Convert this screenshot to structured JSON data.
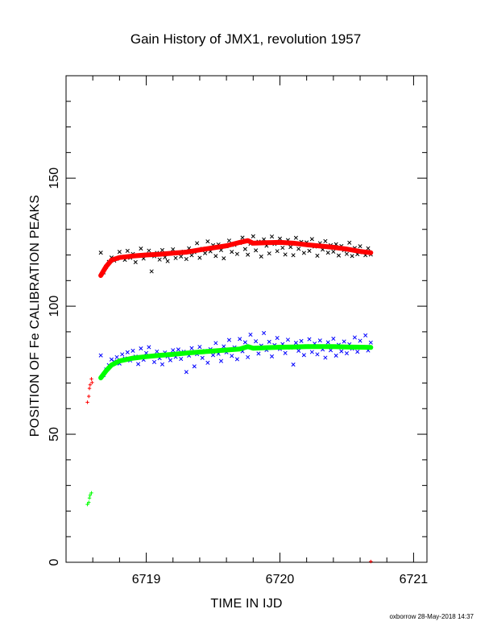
{
  "chart_data": {
    "type": "scatter",
    "title": "Gain History of JMX1, revolution 1957",
    "xlabel": "TIME IN IJD",
    "ylabel": "POSITION OF Fe CALIBRATION PEAKS",
    "xlim": [
      6718.4,
      6721.1
    ],
    "ylim": [
      0,
      190
    ],
    "x_ticks": [
      "6719",
      "6720",
      "6721"
    ],
    "y_ticks": [
      "0",
      "50",
      "100",
      "150"
    ],
    "grid": false,
    "credit": "oxborrow 28-May-2018 14:37",
    "series": [
      {
        "marker": "x",
        "color": "#000000",
        "points": [
          [
            6718.66,
            120.9
          ],
          [
            6718.68,
            113.2
          ],
          [
            6718.7,
            115.4
          ],
          [
            6718.72,
            117.3
          ],
          [
            6718.74,
            119.0
          ],
          [
            6718.76,
            117.8
          ],
          [
            6718.78,
            118.5
          ],
          [
            6718.8,
            121.2
          ],
          [
            6718.82,
            119.3
          ],
          [
            6718.84,
            118.1
          ],
          [
            6718.86,
            121.6
          ],
          [
            6718.88,
            118.9
          ],
          [
            6718.9,
            120.4
          ],
          [
            6718.92,
            117.2
          ],
          [
            6718.94,
            119.8
          ],
          [
            6718.96,
            122.5
          ],
          [
            6718.98,
            118.6
          ],
          [
            6719.0,
            120.1
          ],
          [
            6719.02,
            121.7
          ],
          [
            6719.04,
            113.6
          ],
          [
            6719.06,
            119.5
          ],
          [
            6719.08,
            120.8
          ],
          [
            6719.1,
            118.2
          ],
          [
            6719.12,
            121.9
          ],
          [
            6719.14,
            119.1
          ],
          [
            6719.16,
            117.6
          ],
          [
            6719.18,
            120.6
          ],
          [
            6719.2,
            122.2
          ],
          [
            6719.22,
            118.8
          ],
          [
            6719.24,
            120.9
          ],
          [
            6719.26,
            119.4
          ],
          [
            6719.28,
            121.3
          ],
          [
            6719.3,
            118.4
          ],
          [
            6719.32,
            122.6
          ],
          [
            6719.34,
            119.9
          ],
          [
            6719.36,
            121.1
          ],
          [
            6719.38,
            124.6
          ],
          [
            6719.4,
            118.9
          ],
          [
            6719.42,
            122.4
          ],
          [
            6719.44,
            120.7
          ],
          [
            6719.46,
            125.3
          ],
          [
            6719.48,
            121.4
          ],
          [
            6719.5,
            123.8
          ],
          [
            6719.52,
            119.6
          ],
          [
            6719.54,
            124.1
          ],
          [
            6719.56,
            121.9
          ],
          [
            6719.58,
            118.7
          ],
          [
            6719.6,
            123.4
          ],
          [
            6719.62,
            125.6
          ],
          [
            6719.64,
            121.2
          ],
          [
            6719.66,
            123.9
          ],
          [
            6719.68,
            120.4
          ],
          [
            6719.7,
            124.7
          ],
          [
            6719.72,
            126.8
          ],
          [
            6719.74,
            122.3
          ],
          [
            6719.76,
            120.1
          ],
          [
            6719.78,
            124.4
          ],
          [
            6719.8,
            127.3
          ],
          [
            6719.82,
            121.8
          ],
          [
            6719.84,
            125.2
          ],
          [
            6719.86,
            119.4
          ],
          [
            6719.88,
            126.1
          ],
          [
            6719.9,
            123.6
          ],
          [
            6719.92,
            120.6
          ],
          [
            6719.94,
            127.2
          ],
          [
            6719.96,
            124.3
          ],
          [
            6719.98,
            121.5
          ],
          [
            6720.0,
            126.4
          ],
          [
            6720.02,
            122.8
          ],
          [
            6720.04,
            120.2
          ],
          [
            6720.06,
            125.8
          ],
          [
            6720.08,
            123.1
          ],
          [
            6720.1,
            119.9
          ],
          [
            6720.12,
            126.7
          ],
          [
            6720.14,
            122.4
          ],
          [
            6720.16,
            125.1
          ],
          [
            6720.18,
            120.8
          ],
          [
            6720.2,
            124.9
          ],
          [
            6720.22,
            121.6
          ],
          [
            6720.24,
            126.2
          ],
          [
            6720.26,
            123.3
          ],
          [
            6720.28,
            119.7
          ],
          [
            6720.3,
            124.6
          ],
          [
            6720.32,
            122.1
          ],
          [
            6720.34,
            125.4
          ],
          [
            6720.36,
            120.9
          ],
          [
            6720.38,
            123.8
          ],
          [
            6720.4,
            121.3
          ],
          [
            6720.42,
            124.2
          ],
          [
            6720.44,
            119.8
          ],
          [
            6720.46,
            123.5
          ],
          [
            6720.48,
            121.9
          ],
          [
            6720.5,
            120.4
          ],
          [
            6720.52,
            124.8
          ],
          [
            6720.54,
            119.6
          ],
          [
            6720.56,
            122.7
          ],
          [
            6720.58,
            120.3
          ],
          [
            6720.6,
            123.4
          ],
          [
            6720.62,
            121.1
          ],
          [
            6720.64,
            119.9
          ],
          [
            6720.66,
            122.6
          ],
          [
            6720.68,
            120.2
          ]
        ]
      },
      {
        "marker": "x",
        "color": "#0000ff",
        "points": [
          [
            6718.66,
            80.8
          ],
          [
            6718.68,
            73.1
          ],
          [
            6718.7,
            75.3
          ],
          [
            6718.72,
            77.0
          ],
          [
            6718.74,
            79.2
          ],
          [
            6718.76,
            78.4
          ],
          [
            6718.78,
            80.1
          ],
          [
            6718.8,
            77.6
          ],
          [
            6718.82,
            81.2
          ],
          [
            6718.84,
            79.6
          ],
          [
            6718.86,
            82.0
          ],
          [
            6718.88,
            78.8
          ],
          [
            6718.9,
            82.6
          ],
          [
            6718.92,
            80.3
          ],
          [
            6718.94,
            77.4
          ],
          [
            6718.96,
            83.5
          ],
          [
            6718.98,
            79.1
          ],
          [
            6719.0,
            81.7
          ],
          [
            6719.02,
            84.0
          ],
          [
            6719.04,
            80.5
          ],
          [
            6719.06,
            78.2
          ],
          [
            6719.08,
            82.3
          ],
          [
            6719.1,
            79.7
          ],
          [
            6719.12,
            77.3
          ],
          [
            6719.14,
            81.9
          ],
          [
            6719.16,
            80.4
          ],
          [
            6719.18,
            78.9
          ],
          [
            6719.2,
            82.8
          ],
          [
            6719.22,
            80.2
          ],
          [
            6719.24,
            83.1
          ],
          [
            6719.26,
            79.4
          ],
          [
            6719.28,
            82.2
          ],
          [
            6719.3,
            74.3
          ],
          [
            6719.32,
            80.7
          ],
          [
            6719.34,
            83.6
          ],
          [
            6719.36,
            76.5
          ],
          [
            6719.38,
            81.3
          ],
          [
            6719.4,
            84.1
          ],
          [
            6719.42,
            79.8
          ],
          [
            6719.44,
            82.5
          ],
          [
            6719.46,
            77.9
          ],
          [
            6719.48,
            83.2
          ],
          [
            6719.5,
            80.9
          ],
          [
            6719.52,
            85.6
          ],
          [
            6719.54,
            81.4
          ],
          [
            6719.56,
            78.6
          ],
          [
            6719.58,
            84.3
          ],
          [
            6719.6,
            82.0
          ],
          [
            6719.62,
            86.8
          ],
          [
            6719.64,
            80.6
          ],
          [
            6719.66,
            83.9
          ],
          [
            6719.68,
            79.3
          ],
          [
            6719.7,
            87.2
          ],
          [
            6719.72,
            82.4
          ],
          [
            6719.74,
            85.9
          ],
          [
            6719.76,
            80.1
          ],
          [
            6719.78,
            88.9
          ],
          [
            6719.8,
            83.7
          ],
          [
            6719.82,
            86.3
          ],
          [
            6719.84,
            81.5
          ],
          [
            6719.86,
            84.6
          ],
          [
            6719.88,
            89.5
          ],
          [
            6719.9,
            82.9
          ],
          [
            6719.92,
            86.1
          ],
          [
            6719.94,
            80.4
          ],
          [
            6719.96,
            84.8
          ],
          [
            6719.98,
            87.6
          ],
          [
            6720.0,
            83.3
          ],
          [
            6720.02,
            85.2
          ],
          [
            6720.04,
            81.7
          ],
          [
            6720.06,
            86.9
          ],
          [
            6720.08,
            83.8
          ],
          [
            6720.1,
            77.2
          ],
          [
            6720.12,
            85.7
          ],
          [
            6720.14,
            82.6
          ],
          [
            6720.16,
            86.4
          ],
          [
            6720.18,
            80.9
          ],
          [
            6720.2,
            84.4
          ],
          [
            6720.22,
            87.1
          ],
          [
            6720.24,
            82.1
          ],
          [
            6720.26,
            85.4
          ],
          [
            6720.28,
            81.2
          ],
          [
            6720.3,
            86.6
          ],
          [
            6720.32,
            83.1
          ],
          [
            6720.34,
            79.9
          ],
          [
            6720.36,
            85.9
          ],
          [
            6720.38,
            82.8
          ],
          [
            6720.4,
            87.3
          ],
          [
            6720.42,
            80.7
          ],
          [
            6720.44,
            84.9
          ],
          [
            6720.46,
            82.4
          ],
          [
            6720.48,
            86.2
          ],
          [
            6720.5,
            81.6
          ],
          [
            6720.52,
            85.1
          ],
          [
            6720.54,
            83.4
          ],
          [
            6720.56,
            87.8
          ],
          [
            6720.58,
            82.2
          ],
          [
            6720.6,
            86.5
          ],
          [
            6720.62,
            84.1
          ],
          [
            6720.64,
            88.6
          ],
          [
            6720.66,
            82.7
          ],
          [
            6720.68,
            85.8
          ]
        ]
      },
      {
        "marker": "+",
        "color": "#ff0000",
        "points": [
          [
            6718.56,
            62.5
          ],
          [
            6718.57,
            64.8
          ],
          [
            6718.575,
            67.9
          ],
          [
            6718.58,
            69.3
          ],
          [
            6718.59,
            71.6
          ],
          [
            6718.595,
            70.2
          ]
        ]
      },
      {
        "marker": "+",
        "color": "#00ff00",
        "points": [
          [
            6718.56,
            22.6
          ],
          [
            6718.57,
            23.4
          ],
          [
            6718.575,
            25.1
          ],
          [
            6718.58,
            26.2
          ],
          [
            6718.59,
            27.1
          ]
        ]
      },
      {
        "marker": "+",
        "color": "#ff0000",
        "points": [
          [
            6720.68,
            0.3
          ]
        ]
      },
      {
        "name": "",
        "type": "line",
        "color": "#ff0000",
        "points": [
          [
            6718.66,
            112.0
          ],
          [
            6718.7,
            115.5
          ],
          [
            6718.74,
            118.0
          ],
          [
            6718.8,
            119.0
          ],
          [
            6718.9,
            119.6
          ],
          [
            6719.0,
            120.0
          ],
          [
            6719.1,
            120.3
          ],
          [
            6719.2,
            120.7
          ],
          [
            6719.3,
            121.1
          ],
          [
            6719.4,
            122.0
          ],
          [
            6719.5,
            122.8
          ],
          [
            6719.6,
            123.6
          ],
          [
            6719.7,
            124.9
          ],
          [
            6719.76,
            125.6
          ],
          [
            6719.8,
            124.6
          ],
          [
            6719.9,
            124.8
          ],
          [
            6720.0,
            124.9
          ],
          [
            6720.1,
            124.6
          ],
          [
            6720.2,
            124.0
          ],
          [
            6720.3,
            123.5
          ],
          [
            6720.4,
            123.0
          ],
          [
            6720.5,
            122.3
          ],
          [
            6720.6,
            121.4
          ],
          [
            6720.68,
            120.9
          ]
        ]
      },
      {
        "name": "",
        "type": "line",
        "color": "#00ff00",
        "points": [
          [
            6718.66,
            72.0
          ],
          [
            6718.7,
            74.8
          ],
          [
            6718.74,
            77.0
          ],
          [
            6718.8,
            78.6
          ],
          [
            6718.9,
            79.7
          ],
          [
            6719.0,
            80.3
          ],
          [
            6719.1,
            80.8
          ],
          [
            6719.2,
            81.2
          ],
          [
            6719.3,
            81.7
          ],
          [
            6719.4,
            82.1
          ],
          [
            6719.5,
            82.5
          ],
          [
            6719.6,
            82.9
          ],
          [
            6719.7,
            83.3
          ],
          [
            6719.76,
            84.2
          ],
          [
            6719.8,
            83.6
          ],
          [
            6719.9,
            83.8
          ],
          [
            6720.0,
            84.0
          ],
          [
            6720.1,
            84.1
          ],
          [
            6720.2,
            84.2
          ],
          [
            6720.3,
            84.2
          ],
          [
            6720.4,
            84.2
          ],
          [
            6720.5,
            84.1
          ],
          [
            6720.6,
            84.0
          ],
          [
            6720.68,
            83.9
          ]
        ]
      }
    ]
  }
}
